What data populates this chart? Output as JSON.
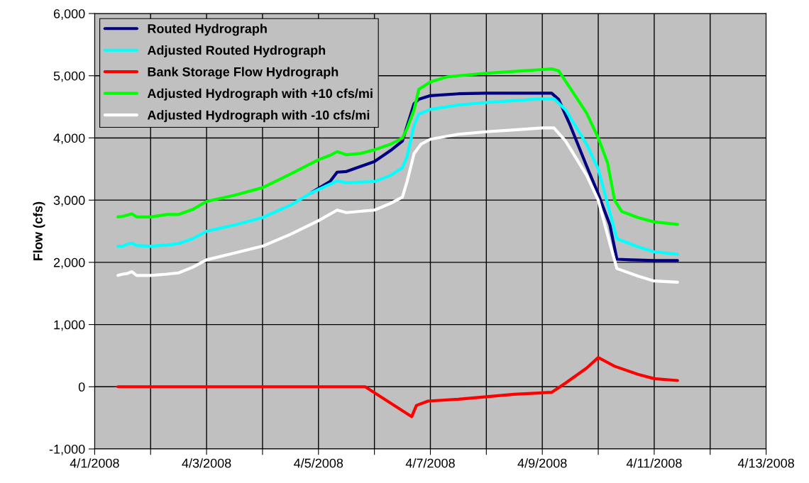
{
  "chart_data": {
    "type": "line",
    "ylabel": "Flow (cfs)",
    "xlim": [
      "2008-04-01",
      "2008-04-13"
    ],
    "xticks": [
      {
        "value": "2008-04-01",
        "label": "4/1/2008"
      },
      {
        "value": "2008-04-02",
        "label": null
      },
      {
        "value": "2008-04-03",
        "label": "4/3/2008"
      },
      {
        "value": "2008-04-04",
        "label": null
      },
      {
        "value": "2008-04-05",
        "label": "4/5/2008"
      },
      {
        "value": "2008-04-06",
        "label": null
      },
      {
        "value": "2008-04-07",
        "label": "4/7/2008"
      },
      {
        "value": "2008-04-08",
        "label": null
      },
      {
        "value": "2008-04-09",
        "label": "4/9/2008"
      },
      {
        "value": "2008-04-10",
        "label": null
      },
      {
        "value": "2008-04-11",
        "label": "4/11/2008"
      },
      {
        "value": "2008-04-12",
        "label": null
      },
      {
        "value": "2008-04-13",
        "label": "4/13/2008"
      }
    ],
    "ylim": [
      -1000,
      6000
    ],
    "yticks": [
      {
        "value": -1000,
        "label": "-1,000"
      },
      {
        "value": 0,
        "label": "0"
      },
      {
        "value": 1000,
        "label": "1,000"
      },
      {
        "value": 2000,
        "label": "2,000"
      },
      {
        "value": 3000,
        "label": "3,000"
      },
      {
        "value": 4000,
        "label": "4,000"
      },
      {
        "value": 5000,
        "label": "5,000"
      },
      {
        "value": 6000,
        "label": "6,000"
      }
    ],
    "grid": true,
    "legend": "top left",
    "marker": "none",
    "line_style": "solid",
    "series": [
      {
        "name": "Routed Hydrograph",
        "color": "#000080",
        "x": [
          "2008-04-04T21:00",
          "2008-04-05T05:00",
          "2008-04-05T08:00",
          "2008-04-05T12:00",
          "2008-04-06T00:00",
          "2008-04-06T07:00",
          "2008-04-06T12:00",
          "2008-04-06T17:00",
          "2008-04-06T19:00",
          "2008-04-07T00:00",
          "2008-04-07T12:00",
          "2008-04-08T00:00",
          "2008-04-09T00:00",
          "2008-04-09T04:00",
          "2008-04-09T07:00",
          "2008-04-09T12:00",
          "2008-04-09T19:00",
          "2008-04-10T00:00",
          "2008-04-10T05:00",
          "2008-04-10T08:00",
          "2008-04-10T14:00",
          "2008-04-11T00:00",
          "2008-04-11T10:00"
        ],
        "values": [
          3120,
          3300,
          3450,
          3460,
          3620,
          3800,
          3950,
          4550,
          4620,
          4680,
          4710,
          4720,
          4720,
          4720,
          4620,
          4200,
          3550,
          3100,
          2600,
          2050,
          2040,
          2030,
          2030
        ]
      },
      {
        "name": "Adjusted Routed Hydrograph",
        "color": "#00ffff",
        "x": [
          "2008-04-01T10:00",
          "2008-04-01T12:00",
          "2008-04-01T14:00",
          "2008-04-01T16:00",
          "2008-04-01T18:00",
          "2008-04-02T00:00",
          "2008-04-02T07:00",
          "2008-04-02T12:00",
          "2008-04-02T18:00",
          "2008-04-03T00:00",
          "2008-04-03T12:00",
          "2008-04-04T00:00",
          "2008-04-04T12:00",
          "2008-04-04T21:00",
          "2008-04-05T00:00",
          "2008-04-05T08:00",
          "2008-04-05T12:00",
          "2008-04-06T00:00",
          "2008-04-06T07:00",
          "2008-04-06T12:00",
          "2008-04-06T14:00",
          "2008-04-06T17:00",
          "2008-04-06T19:00",
          "2008-04-07T00:00",
          "2008-04-07T12:00",
          "2008-04-08T00:00",
          "2008-04-08T12:00",
          "2008-04-09T00:00",
          "2008-04-09T05:00",
          "2008-04-09T10:00",
          "2008-04-09T19:00",
          "2008-04-10T00:00",
          "2008-04-10T05:00",
          "2008-04-10T08:00",
          "2008-04-10T17:00",
          "2008-04-11T00:00",
          "2008-04-11T10:00"
        ],
        "values": [
          2260,
          2260,
          2290,
          2310,
          2270,
          2260,
          2280,
          2300,
          2380,
          2500,
          2600,
          2720,
          2920,
          3120,
          3170,
          3310,
          3280,
          3300,
          3400,
          3520,
          3700,
          4200,
          4380,
          4460,
          4530,
          4570,
          4600,
          4630,
          4630,
          4450,
          3900,
          3500,
          2800,
          2380,
          2250,
          2170,
          2130
        ]
      },
      {
        "name": "Bank Storage Flow Hydrograph",
        "color": "#ff0000",
        "x": [
          "2008-04-01T10:00",
          "2008-04-05T20:00",
          "2008-04-06T16:00",
          "2008-04-06T18:00",
          "2008-04-06T23:00",
          "2008-04-07T12:00",
          "2008-04-08T00:00",
          "2008-04-08T12:00",
          "2008-04-09T04:00",
          "2008-04-09T10:00",
          "2008-04-09T19:00",
          "2008-04-10T00:00",
          "2008-04-10T07:00",
          "2008-04-10T17:00",
          "2008-04-11T00:00",
          "2008-04-11T10:00"
        ],
        "values": [
          0,
          0,
          -480,
          -300,
          -230,
          -200,
          -160,
          -120,
          -90,
          60,
          300,
          470,
          330,
          200,
          130,
          100
        ]
      },
      {
        "name": "Adjusted Hydrograph with +10 cfs/mi",
        "color": "#00ff00",
        "x": [
          "2008-04-01T10:00",
          "2008-04-01T12:00",
          "2008-04-01T14:00",
          "2008-04-01T16:00",
          "2008-04-01T18:00",
          "2008-04-02T00:00",
          "2008-04-02T07:00",
          "2008-04-02T12:00",
          "2008-04-02T18:00",
          "2008-04-03T00:00",
          "2008-04-03T12:00",
          "2008-04-04T00:00",
          "2008-04-04T12:00",
          "2008-04-05T00:00",
          "2008-04-05T05:00",
          "2008-04-05T08:00",
          "2008-04-05T12:00",
          "2008-04-05T18:00",
          "2008-04-06T00:00",
          "2008-04-06T07:00",
          "2008-04-06T12:00",
          "2008-04-06T14:00",
          "2008-04-06T17:00",
          "2008-04-06T19:00",
          "2008-04-07T00:00",
          "2008-04-07T07:00",
          "2008-04-07T12:00",
          "2008-04-08T00:00",
          "2008-04-08T12:00",
          "2008-04-09T00:00",
          "2008-04-09T04:00",
          "2008-04-09T07:00",
          "2008-04-09T12:00",
          "2008-04-09T19:00",
          "2008-04-10T00:00",
          "2008-04-10T04:00",
          "2008-04-10T07:00",
          "2008-04-10T10:00",
          "2008-04-10T17:00",
          "2008-04-11T00:00",
          "2008-04-11T10:00"
        ],
        "values": [
          2730,
          2740,
          2760,
          2780,
          2730,
          2730,
          2770,
          2770,
          2850,
          2980,
          3080,
          3200,
          3420,
          3650,
          3720,
          3780,
          3730,
          3750,
          3810,
          3900,
          4000,
          4150,
          4450,
          4780,
          4900,
          4980,
          5000,
          5040,
          5070,
          5100,
          5110,
          5080,
          4800,
          4400,
          4000,
          3600,
          3000,
          2820,
          2720,
          2650,
          2610
        ]
      },
      {
        "name": "Adjusted Hydrograph with -10 cfs/mi",
        "color": "#ffffff",
        "x": [
          "2008-04-01T10:00",
          "2008-04-01T12:00",
          "2008-04-01T14:00",
          "2008-04-01T16:00",
          "2008-04-01T18:00",
          "2008-04-02T00:00",
          "2008-04-02T07:00",
          "2008-04-02T12:00",
          "2008-04-02T18:00",
          "2008-04-03T00:00",
          "2008-04-03T12:00",
          "2008-04-04T00:00",
          "2008-04-04T12:00",
          "2008-04-05T00:00",
          "2008-04-05T08:00",
          "2008-04-05T12:00",
          "2008-04-06T00:00",
          "2008-04-06T07:00",
          "2008-04-06T12:00",
          "2008-04-06T14:00",
          "2008-04-06T17:00",
          "2008-04-06T20:00",
          "2008-04-07T00:00",
          "2008-04-07T12:00",
          "2008-04-08T00:00",
          "2008-04-08T12:00",
          "2008-04-09T00:00",
          "2008-04-09T05:00",
          "2008-04-09T10:00",
          "2008-04-09T19:00",
          "2008-04-10T00:00",
          "2008-04-10T05:00",
          "2008-04-10T08:00",
          "2008-04-10T17:00",
          "2008-04-11T00:00",
          "2008-04-11T10:00"
        ],
        "values": [
          1790,
          1810,
          1820,
          1850,
          1790,
          1790,
          1810,
          1830,
          1920,
          2040,
          2150,
          2260,
          2450,
          2670,
          2840,
          2800,
          2840,
          2950,
          3050,
          3300,
          3750,
          3900,
          3980,
          4060,
          4100,
          4130,
          4160,
          4160,
          3950,
          3400,
          3000,
          2300,
          1900,
          1780,
          1700,
          1680
        ]
      }
    ]
  }
}
